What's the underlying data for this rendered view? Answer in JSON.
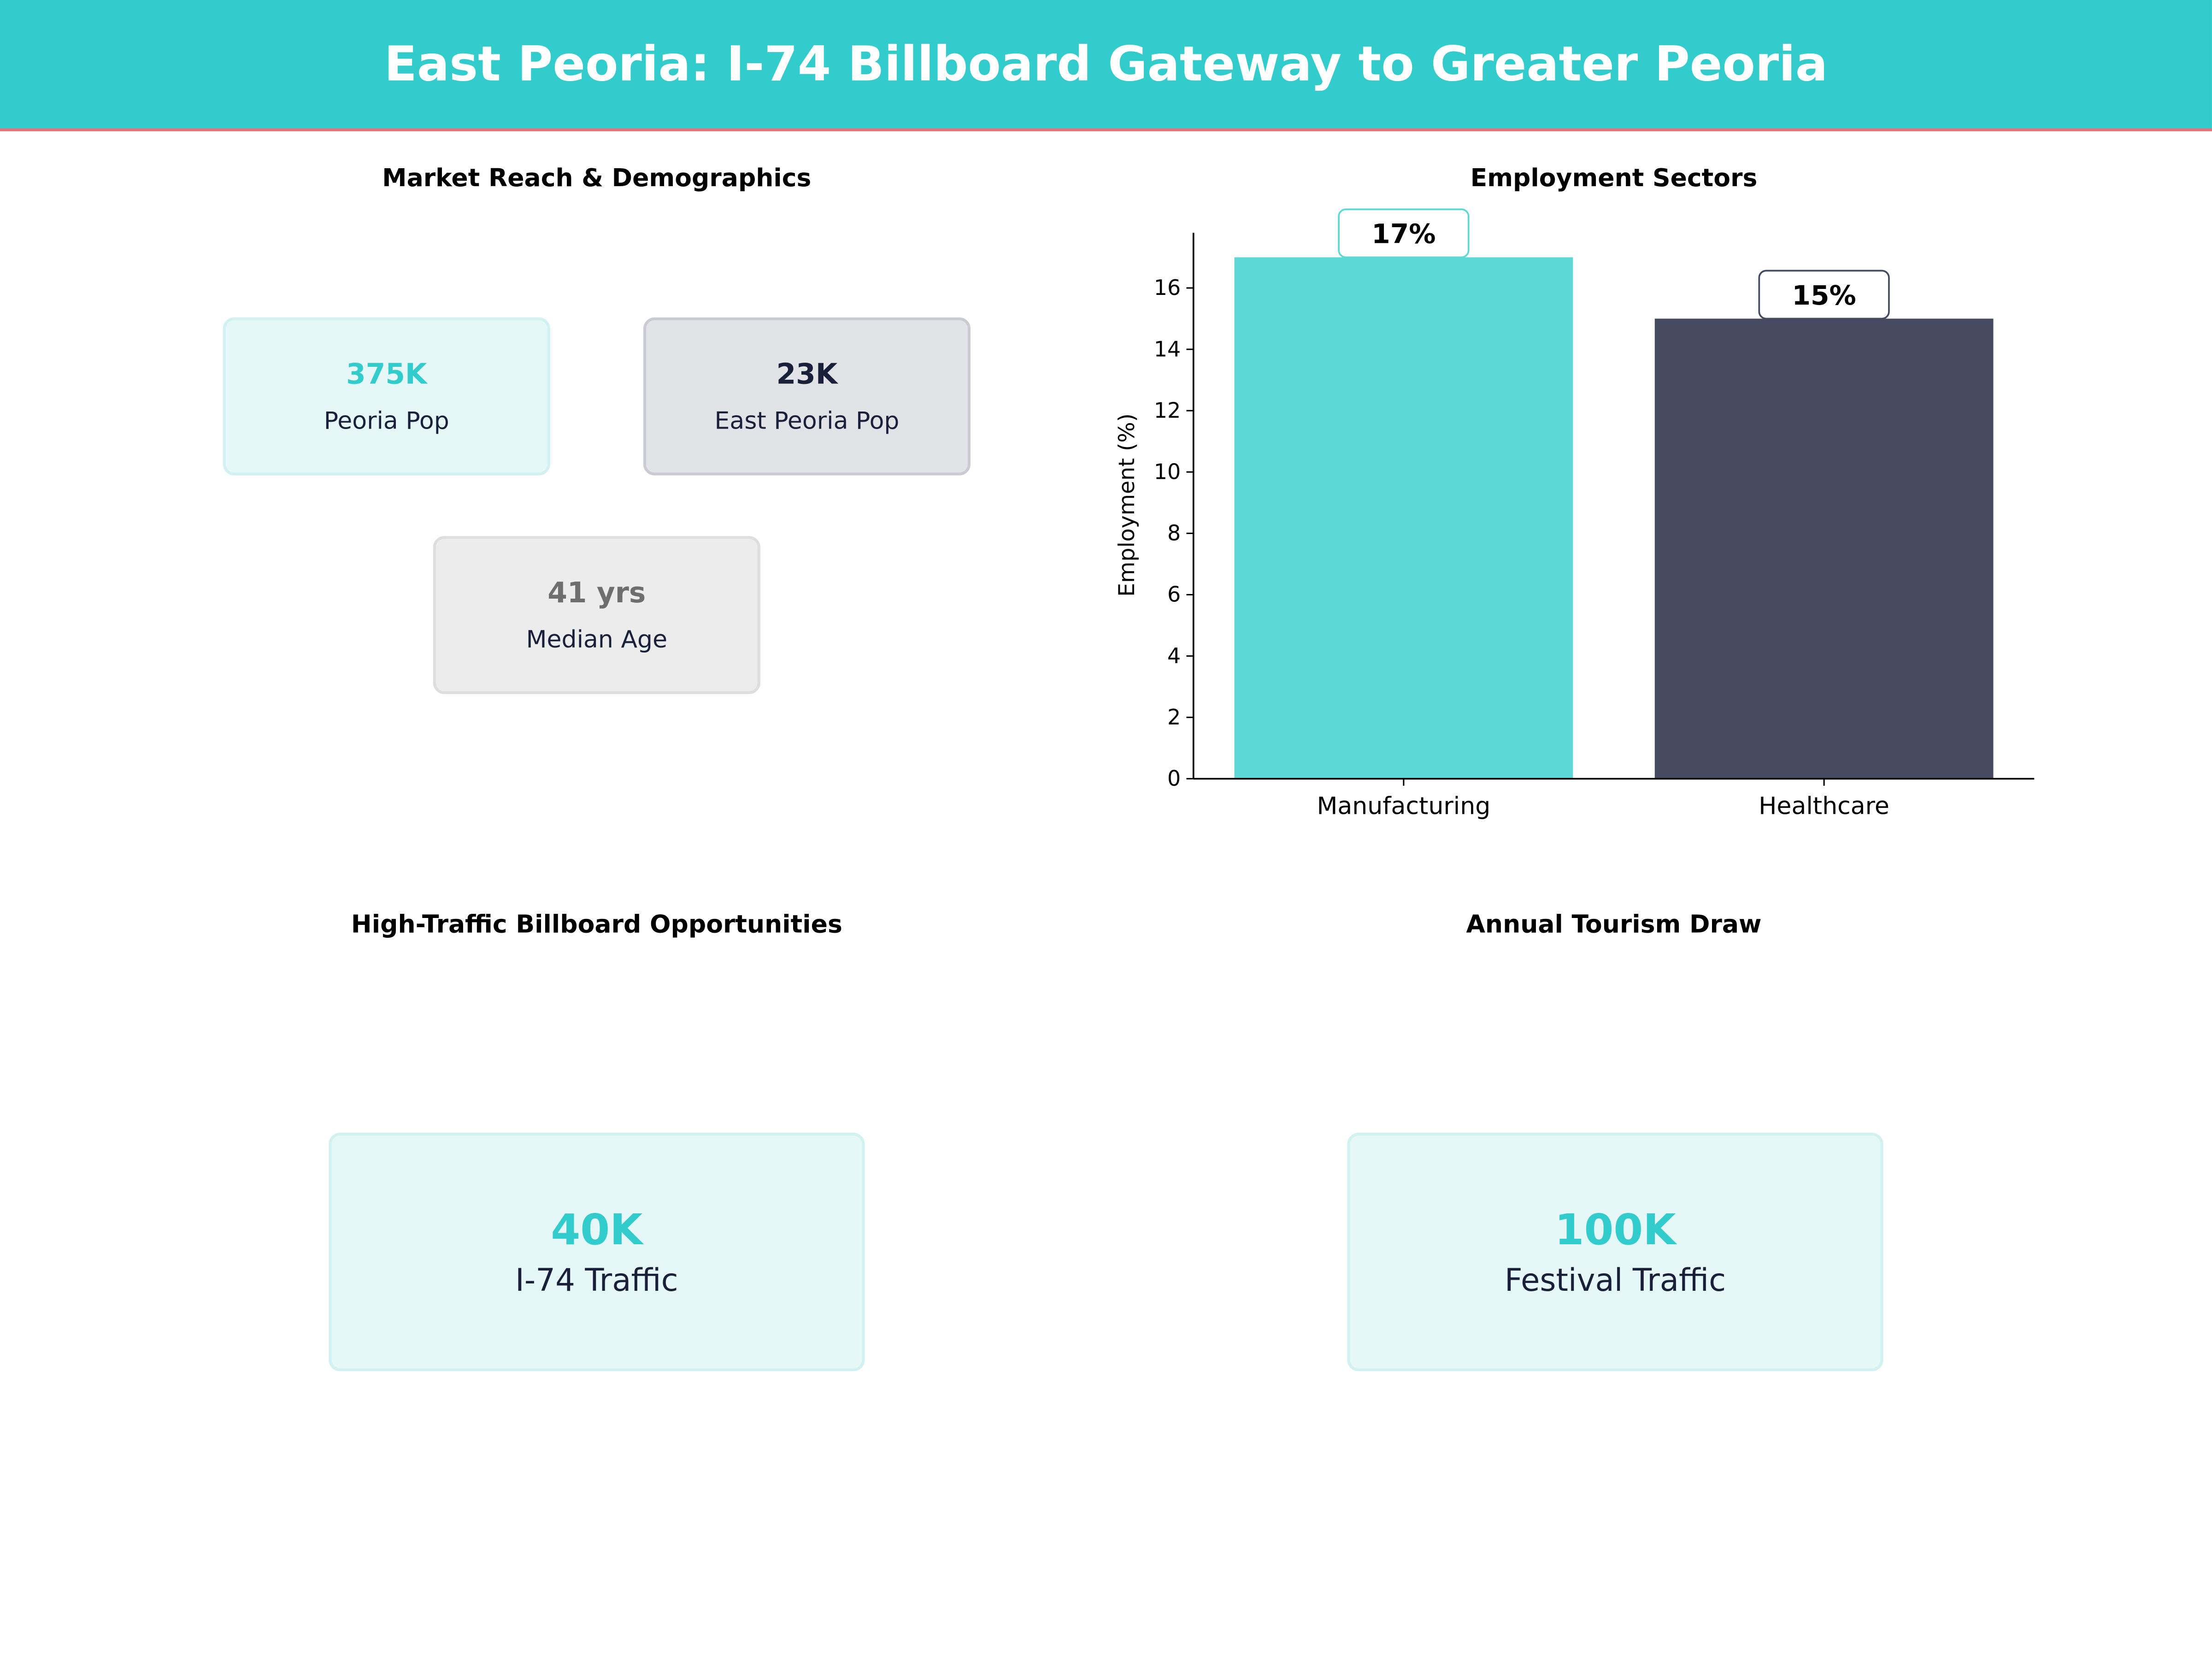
{
  "header": {
    "title": "East Peoria: I-74 Billboard Gateway to Greater Peoria"
  },
  "colors": {
    "accent": "#33CCCC",
    "dark": "#1a1f3a",
    "gray": "#6e6e6e",
    "header_line": "#e8707a"
  },
  "demographics": {
    "title": "Market Reach & Demographics",
    "cards": [
      {
        "value": "375K",
        "label": "Peoria Pop"
      },
      {
        "value": "23K",
        "label": "East Peoria Pop"
      },
      {
        "value": "41 yrs",
        "label": "Median Age"
      }
    ]
  },
  "billboard": {
    "title": "High-Traffic Billboard Opportunities",
    "card": {
      "value": "40K",
      "label": "I-74 Traffic"
    }
  },
  "tourism": {
    "title": "Annual Tourism Draw",
    "card": {
      "value": "100K",
      "label": "Festival Traffic"
    }
  },
  "chart_data": {
    "type": "bar",
    "title": "Employment Sectors",
    "categories": [
      "Manufacturing",
      "Healthcare"
    ],
    "values": [
      17,
      15
    ],
    "data_labels": [
      "17%",
      "15%"
    ],
    "colors": [
      "#5dd8d5",
      "#454a60"
    ],
    "xlabel": "",
    "ylabel": "Employment (%)",
    "ylim": [
      0,
      17.8
    ],
    "yticks": [
      0,
      2,
      4,
      6,
      8,
      10,
      12,
      14,
      16
    ],
    "grid": false
  }
}
